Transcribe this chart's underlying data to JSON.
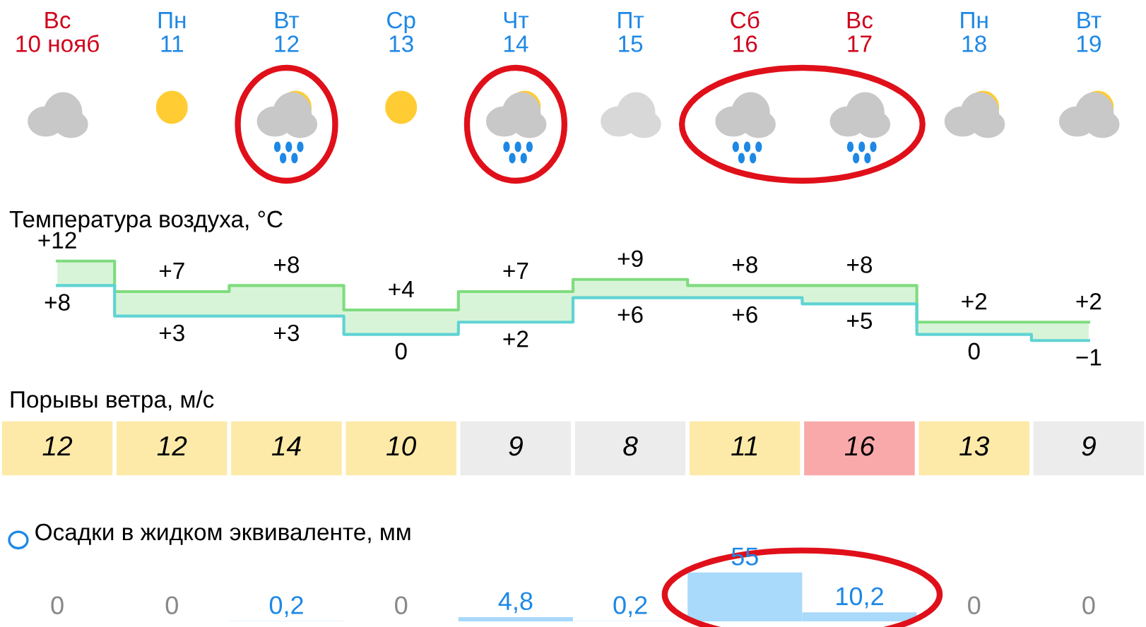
{
  "chart_data": [
    {
      "type": "step",
      "title": "Температура воздуха, °C",
      "categories": [
        "Вс\n10 нояб",
        "Пн\n11",
        "Вт\n12",
        "Ср\n13",
        "Чт\n14",
        "Пт\n15",
        "Сб\n16",
        "Вс\n17",
        "Пн\n18",
        "Вт\n19"
      ],
      "series": [
        {
          "color": "#7fdc7f",
          "values": [
            12,
            7,
            8,
            4,
            7,
            9,
            8,
            8,
            2,
            2
          ],
          "value_labels": [
            "+12",
            "+7",
            "+8",
            "+4",
            "+7",
            "+9",
            "+8",
            "+8",
            "+2",
            "+2"
          ]
        },
        {
          "color": "#5fd3d3",
          "values": [
            8,
            3,
            3,
            0,
            2,
            6,
            6,
            5,
            0,
            -1
          ],
          "value_labels": [
            "+8",
            "+3",
            "+3",
            "0",
            "+2",
            "+6",
            "+6",
            "+5",
            "0",
            "−1"
          ]
        }
      ]
    },
    {
      "type": "other",
      "title": "Порывы ветра, м/с",
      "annotations": [
        "12",
        "12",
        "14",
        "10",
        "9",
        "8",
        "11",
        "16",
        "13",
        "9"
      ],
      "colors": [
        "#fdeaa9",
        "#fdeaa9",
        "#fdeaa9",
        "#fdeaa9",
        "#ececec",
        "#ececec",
        "#fdeaa9",
        "#f9a9a9",
        "#fdeaa9",
        "#ececec"
      ]
    },
    {
      "type": "bar",
      "title": "Осадки в жидком эквиваленте, мм",
      "categories": [
        null,
        null,
        null,
        null,
        null,
        null,
        null,
        null,
        null,
        null
      ],
      "values": [
        0,
        0,
        0.2,
        0,
        4.8,
        0.2,
        55,
        10.2,
        0,
        0
      ],
      "value_labels": [
        "0",
        "0",
        "0,2",
        "0",
        "4,8",
        "0,2",
        "55",
        "10,2",
        "0",
        "0"
      ],
      "color": "#a9d9fb"
    }
  ]
}
